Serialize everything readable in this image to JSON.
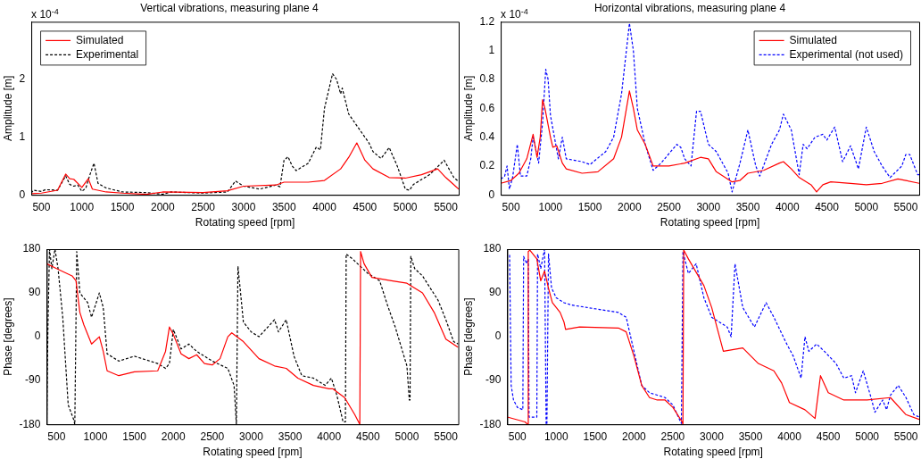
{
  "chart_data": [
    {
      "type": "line",
      "title": "Vertical vibrations, measuring plane 4",
      "xlabel": "Rotating speed [rpm]",
      "ylabel": "Amplitude [m]",
      "annotations": [
        "x 10$^{-4}$"
      ],
      "xlim": [
        375,
        5660
      ],
      "xticks": [
        500,
        1000,
        1500,
        2000,
        2500,
        3000,
        3500,
        4000,
        4500,
        5000,
        5500
      ],
      "ylim": [
        0,
        3
      ],
      "yticks": [
        0,
        1,
        2
      ],
      "legend": "top left",
      "marker": "none",
      "series": [
        {
          "name": "Simulated",
          "color": "#ff0000",
          "line_style": "solid",
          "x": [
            375,
            500,
            700,
            800,
            850,
            900,
            1000,
            1080,
            1130,
            1300,
            1500,
            1800,
            2000,
            2500,
            2800,
            3000,
            3400,
            3500,
            3800,
            4000,
            4200,
            4300,
            4400,
            4500,
            4600,
            4800,
            5000,
            5200,
            5400,
            5500,
            5660
          ],
          "values": [
            0.02,
            0.03,
            0.08,
            0.36,
            0.28,
            0.27,
            0.13,
            0.28,
            0.1,
            0.05,
            0.03,
            0.01,
            0.05,
            0.04,
            0.07,
            0.15,
            0.17,
            0.22,
            0.22,
            0.25,
            0.45,
            0.65,
            0.9,
            0.6,
            0.45,
            0.3,
            0.29,
            0.35,
            0.45,
            0.3,
            0.1
          ]
        },
        {
          "name": "Experimental",
          "color": "#000000",
          "line_style": "dashed",
          "x": [
            375,
            400,
            500,
            550,
            700,
            800,
            850,
            900,
            950,
            1000,
            1050,
            1100,
            1150,
            1200,
            1300,
            1500,
            1800,
            2000,
            2100,
            2500,
            2800,
            2900,
            3000,
            3200,
            3400,
            3450,
            3500,
            3550,
            3600,
            3650,
            3800,
            3900,
            3950,
            4000,
            4100,
            4150,
            4200,
            4220,
            4300,
            4450,
            4550,
            4600,
            4700,
            4800,
            4900,
            5000,
            5050,
            5100,
            5300,
            5480,
            5600,
            5660
          ],
          "values": [
            0.03,
            0.08,
            0.06,
            0.09,
            0.08,
            0.33,
            0.18,
            0.15,
            0.17,
            0.06,
            0.12,
            0.35,
            0.55,
            0.2,
            0.12,
            0.05,
            0.04,
            0.01,
            0.05,
            0.03,
            0.05,
            0.24,
            0.15,
            0.1,
            0.17,
            0.14,
            0.6,
            0.66,
            0.5,
            0.42,
            0.55,
            0.83,
            0.78,
            1.5,
            2.1,
            2,
            1.75,
            1.85,
            1.4,
            1.1,
            0.9,
            0.75,
            0.63,
            0.82,
            0.5,
            0.1,
            0.08,
            0.18,
            0.35,
            0.6,
            0.3,
            0.23
          ]
        }
      ]
    },
    {
      "type": "line",
      "title": "Horizontal vibrations, measuring plane 4",
      "xlabel": "Rotating speed [rpm]",
      "ylabel": "Amplitude [m]",
      "annotations": [
        "x 10$^{-4}$"
      ],
      "xlim": [
        370,
        5670
      ],
      "xticks": [
        500,
        1000,
        1500,
        2000,
        2500,
        3000,
        3500,
        4000,
        4500,
        5000,
        5500
      ],
      "ylim": [
        0,
        1.2
      ],
      "yticks": [
        0,
        0.2,
        0.4,
        0.6,
        0.8,
        1,
        1.2
      ],
      "legend": "top right",
      "marker": "none",
      "series": [
        {
          "name": "Simulated",
          "color": "#ff0000",
          "line_style": "solid",
          "x": [
            370,
            500,
            600,
            700,
            780,
            830,
            870,
            900,
            930,
            1000,
            1030,
            1080,
            1150,
            1200,
            1400,
            1600,
            1800,
            1900,
            2000,
            2050,
            2100,
            2200,
            2300,
            2500,
            2700,
            2900,
            3000,
            3100,
            3300,
            3400,
            3500,
            3700,
            3900,
            3950,
            4050,
            4150,
            4300,
            4370,
            4450,
            4550,
            4800,
            5000,
            5200,
            5400,
            5500,
            5670
          ],
          "values": [
            0.08,
            0.1,
            0.15,
            0.25,
            0.42,
            0.26,
            0.4,
            0.66,
            0.6,
            0.4,
            0.33,
            0.34,
            0.22,
            0.18,
            0.15,
            0.16,
            0.25,
            0.4,
            0.72,
            0.6,
            0.45,
            0.35,
            0.2,
            0.2,
            0.22,
            0.26,
            0.25,
            0.16,
            0.09,
            0.1,
            0.15,
            0.17,
            0.22,
            0.23,
            0.18,
            0.12,
            0.07,
            0.02,
            0.07,
            0.09,
            0.08,
            0.07,
            0.08,
            0.11,
            0.1,
            0.08
          ]
        },
        {
          "name": "Experimental (not used)",
          "color": "#0000ff",
          "line_style": "dashed",
          "x": [
            370,
            420,
            450,
            480,
            520,
            580,
            620,
            700,
            750,
            780,
            850,
            900,
            940,
            970,
            1000,
            1050,
            1100,
            1150,
            1200,
            1400,
            1500,
            1700,
            1800,
            1900,
            2000,
            2050,
            2100,
            2200,
            2300,
            2400,
            2600,
            2650,
            2700,
            2780,
            2850,
            2900,
            3000,
            3100,
            3250,
            3300,
            3400,
            3500,
            3600,
            3650,
            3800,
            3900,
            3950,
            4050,
            4150,
            4200,
            4250,
            4350,
            4450,
            4500,
            4600,
            4700,
            4800,
            4900,
            5000,
            5100,
            5200,
            5300,
            5450,
            5500,
            5550,
            5650,
            5670
          ],
          "values": [
            0.11,
            0.13,
            0.2,
            0.04,
            0.12,
            0.35,
            0.13,
            0.13,
            0.25,
            0.4,
            0.22,
            0.5,
            0.87,
            0.8,
            0.55,
            0.4,
            0.25,
            0.4,
            0.25,
            0.23,
            0.21,
            0.3,
            0.4,
            0.7,
            1.19,
            1,
            0.6,
            0.35,
            0.17,
            0.22,
            0.35,
            0.33,
            0.25,
            0.2,
            0.58,
            0.58,
            0.35,
            0.3,
            0.15,
            0.02,
            0.22,
            0.45,
            0.2,
            0.13,
            0.35,
            0.45,
            0.56,
            0.45,
            0.14,
            0.35,
            0.32,
            0.4,
            0.42,
            0.38,
            0.47,
            0.23,
            0.34,
            0.18,
            0.47,
            0.3,
            0.2,
            0.12,
            0.2,
            0.28,
            0.28,
            0.14,
            0.14
          ]
        }
      ]
    },
    {
      "type": "line",
      "xlabel": "Rotating speed [rpm]",
      "ylabel": "Phase [degrees]",
      "xlim": [
        375,
        5660
      ],
      "xticks": [
        500,
        1000,
        1500,
        2000,
        2500,
        3000,
        3500,
        4000,
        4500,
        5000,
        5500
      ],
      "ylim": [
        -180,
        180
      ],
      "yticks": [
        -180,
        -90,
        0,
        90,
        180
      ],
      "marker": "none",
      "series": [
        {
          "color": "#ff0000",
          "line_style": "solid",
          "x": [
            375,
            500,
            700,
            750,
            800,
            850,
            950,
            1050,
            1100,
            1150,
            1300,
            1500,
            1800,
            1900,
            1950,
            2000,
            2100,
            2200,
            2300,
            2400,
            2500,
            2600,
            2700,
            2750,
            2900,
            3100,
            3300,
            3450,
            3600,
            3800,
            4000,
            4050,
            4200,
            4330,
            4395,
            4405,
            4450,
            4550,
            4800,
            5000,
            5200,
            5350,
            5500,
            5660
          ],
          "values": [
            150,
            140,
            125,
            115,
            50,
            25,
            -15,
            0,
            -30,
            -70,
            -80,
            -72,
            -70,
            -30,
            20,
            5,
            -35,
            -45,
            -37,
            -55,
            -58,
            -45,
            0,
            8,
            -10,
            -45,
            -60,
            -65,
            -85,
            -100,
            -107,
            -107,
            -125,
            -160,
            -180,
            175,
            150,
            122,
            115,
            110,
            90,
            50,
            -5,
            -22
          ]
        },
        {
          "color": "#000000",
          "line_style": "dashed",
          "x": [
            375,
            390,
            410,
            440,
            480,
            520,
            580,
            650,
            720,
            735,
            760,
            800,
            900,
            950,
            1050,
            1100,
            1150,
            1300,
            1500,
            1800,
            1900,
            1950,
            2000,
            2100,
            2200,
            2300,
            2500,
            2700,
            2780,
            2810,
            2830,
            2900,
            3000,
            3100,
            3300,
            3350,
            3450,
            3550,
            3650,
            3800,
            3950,
            4030,
            4100,
            4180,
            4210,
            4220,
            4300,
            4500,
            4650,
            4750,
            4850,
            5000,
            5030,
            5040,
            5050,
            5100,
            5200,
            5300,
            5400,
            5500,
            5600,
            5660
          ],
          "values": [
            -170,
            20,
            180,
            140,
            180,
            140,
            40,
            -140,
            -170,
            -180,
            175,
            90,
            70,
            40,
            90,
            60,
            -35,
            -50,
            -40,
            -55,
            -65,
            -55,
            15,
            -25,
            -15,
            -30,
            -50,
            -65,
            -100,
            -180,
            145,
            30,
            10,
            0,
            35,
            10,
            35,
            -40,
            -80,
            -85,
            -100,
            -85,
            -120,
            -175,
            -175,
            170,
            160,
            130,
            115,
            65,
            20,
            -60,
            -130,
            -130,
            165,
            140,
            125,
            100,
            75,
            35,
            -10,
            -15
          ]
        }
      ]
    },
    {
      "type": "line",
      "xlabel": "Rotating speed [rpm]",
      "ylabel": "Phase [degrees]",
      "xlim": [
        370,
        5670
      ],
      "xticks": [
        500,
        1000,
        1500,
        2000,
        2500,
        3000,
        3500,
        4000,
        4500,
        5000,
        5500
      ],
      "ylim": [
        -180,
        180
      ],
      "yticks": [
        -180,
        -90,
        0,
        90,
        180
      ],
      "marker": "none",
      "series": [
        {
          "color": "#ff0000",
          "line_style": "solid",
          "x": [
            370,
            600,
            630,
            640,
            660,
            750,
            800,
            850,
            900,
            950,
            1050,
            1100,
            1120,
            1300,
            1800,
            1900,
            2000,
            2100,
            2200,
            2300,
            2400,
            2500,
            2620,
            2630,
            2640,
            2700,
            2900,
            3000,
            3150,
            3400,
            3600,
            3800,
            3900,
            4000,
            4200,
            4330,
            4400,
            4500,
            4700,
            5000,
            5300,
            5500,
            5670
          ],
          "values": [
            -165,
            -175,
            -180,
            175,
            178,
            160,
            115,
            135,
            100,
            70,
            50,
            30,
            15,
            20,
            18,
            10,
            -40,
            -100,
            -125,
            -130,
            -130,
            -145,
            -175,
            -180,
            178,
            160,
            105,
            60,
            -30,
            -23,
            -55,
            -70,
            -95,
            -135,
            -150,
            -168,
            -80,
            -115,
            -130,
            -130,
            -125,
            -160,
            -170
          ]
        },
        {
          "color": "#0000ff",
          "line_style": "dashed",
          "x": [
            400,
            420,
            450,
            500,
            570,
            580,
            620,
            640,
            650,
            700,
            750,
            760,
            800,
            850,
            870,
            880,
            900,
            940,
            1000,
            1100,
            1200,
            1400,
            1600,
            1800,
            1900,
            2000,
            2100,
            2200,
            2300,
            2400,
            2500,
            2600,
            2610,
            2630,
            2700,
            2800,
            2900,
            3000,
            3200,
            3250,
            3300,
            3400,
            3550,
            3700,
            3800,
            3950,
            4050,
            4150,
            4200,
            4250,
            4350,
            4450,
            4600,
            4700,
            4800,
            4850,
            4950,
            5050,
            5100,
            5200,
            5250,
            5300,
            5400,
            5500,
            5600,
            5670
          ],
          "values": [
            168,
            -100,
            -130,
            -145,
            -150,
            165,
            150,
            160,
            -165,
            -165,
            -165,
            170,
            140,
            180,
            -180,
            -180,
            170,
            100,
            80,
            70,
            65,
            60,
            55,
            50,
            40,
            -30,
            -100,
            -115,
            -120,
            -125,
            -140,
            -175,
            -178,
            175,
            130,
            150,
            80,
            40,
            20,
            0,
            150,
            60,
            20,
            70,
            40,
            -10,
            -40,
            -85,
            0,
            -30,
            -15,
            -30,
            -55,
            -85,
            -80,
            -115,
            -70,
            -125,
            -155,
            -130,
            -150,
            -120,
            -100,
            -125,
            -160,
            -165
          ]
        }
      ]
    }
  ]
}
